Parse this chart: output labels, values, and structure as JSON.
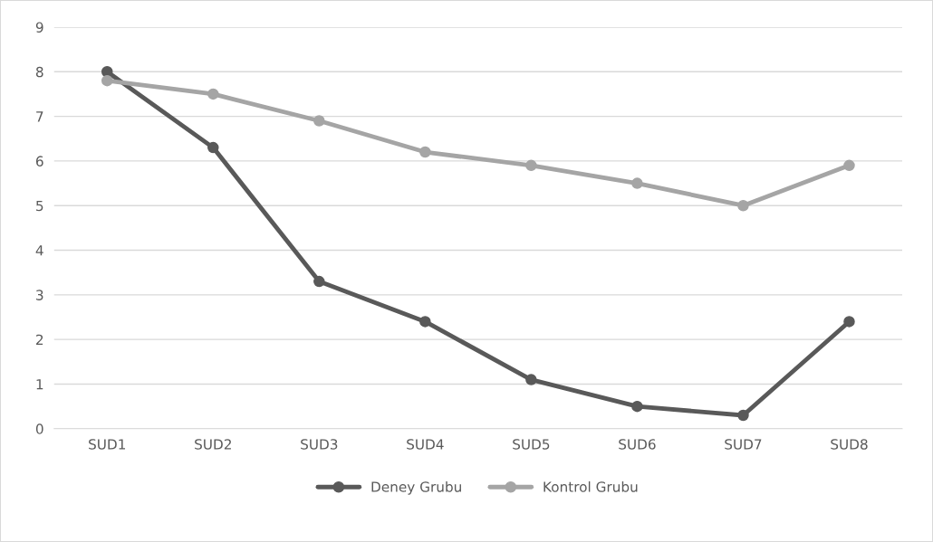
{
  "chart_data": {
    "type": "line",
    "categories": [
      "SUD1",
      "SUD2",
      "SUD3",
      "SUD4",
      "SUD5",
      "SUD6",
      "SUD7",
      "SUD8"
    ],
    "series": [
      {
        "name": "Deney Grubu",
        "color": "#595959",
        "values": [
          8.0,
          6.3,
          3.3,
          2.4,
          1.1,
          0.5,
          0.3,
          2.4
        ]
      },
      {
        "name": "Kontrol Grubu",
        "color": "#a5a5a5",
        "values": [
          7.8,
          7.5,
          6.9,
          6.2,
          5.9,
          5.5,
          5.0,
          5.9
        ]
      }
    ],
    "ylim": [
      0,
      9
    ],
    "yticks": [
      0,
      1,
      2,
      3,
      4,
      5,
      6,
      7,
      8,
      9
    ],
    "grid": "y",
    "legend": "bottom",
    "marker": "circle",
    "line_style": "solid"
  }
}
